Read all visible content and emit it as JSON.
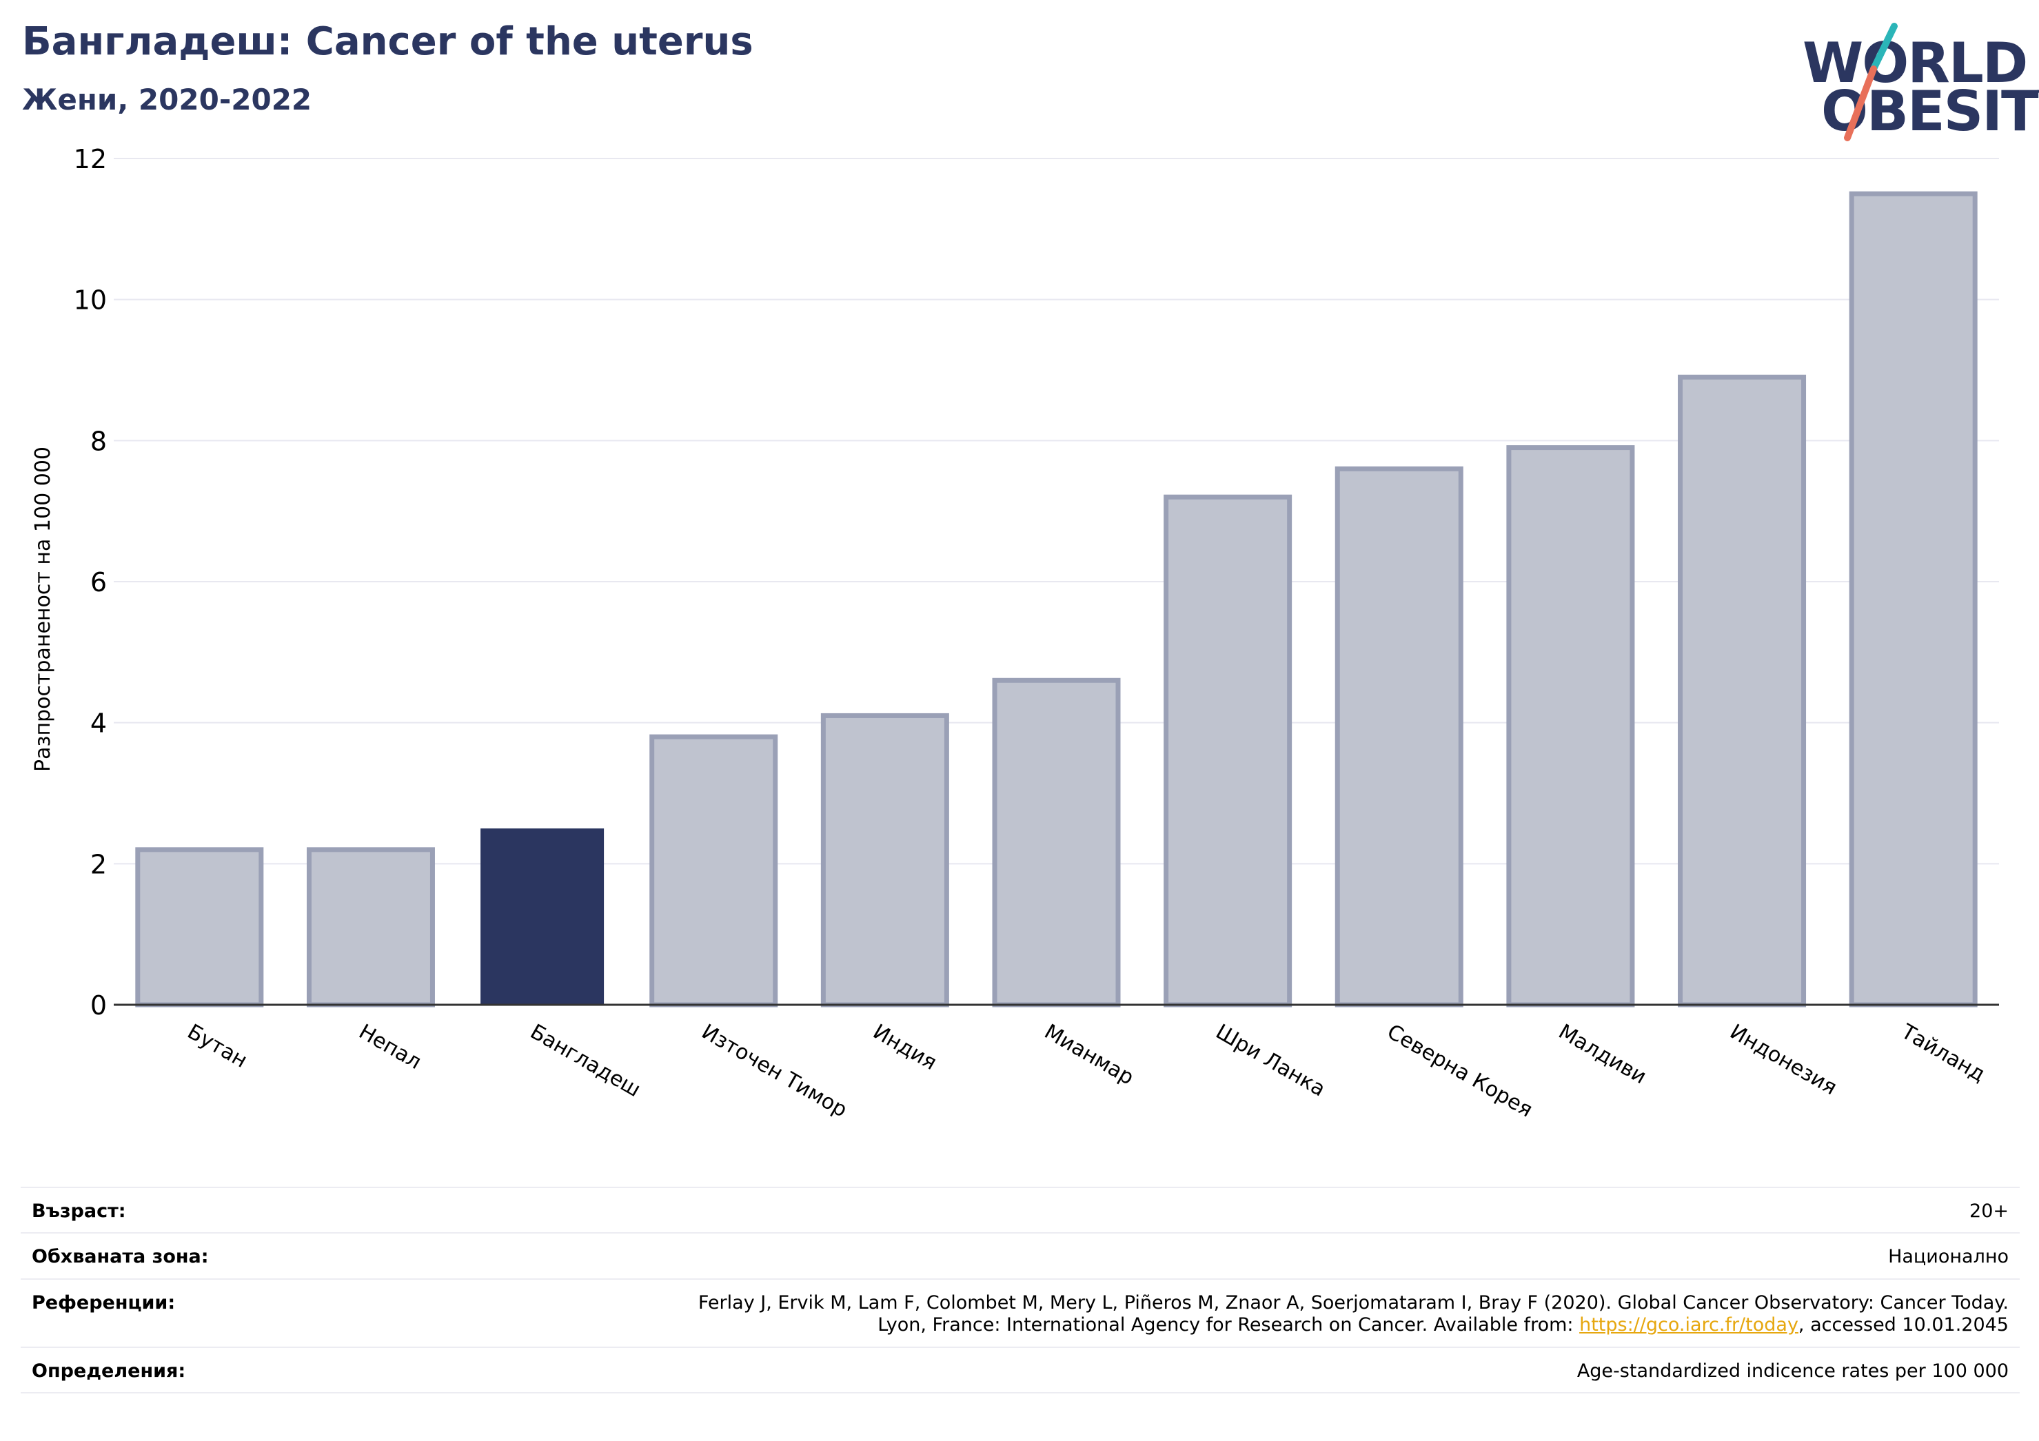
{
  "header": {
    "title": "Бангладеш: Cancer of the uterus",
    "subtitle": "Жени, 2020-2022"
  },
  "logo": {
    "line1": "WORLD",
    "line2": "OBESITY",
    "colors": {
      "navy": "#2b3660",
      "teal": "#2bb5b8",
      "coral": "#e8705a"
    }
  },
  "chart_data": {
    "type": "bar",
    "title": "Бангладеш: Cancer of the uterus",
    "subtitle": "Жени, 2020-2022",
    "ylabel": "Разпространеност  на 100 000",
    "xlabel": "",
    "ylim": [
      0,
      12
    ],
    "yticks": [
      0,
      2,
      4,
      6,
      8,
      10,
      12
    ],
    "grid": true,
    "legend": "none",
    "categories": [
      "Бутан",
      "Непал",
      "Бангладеш",
      "Източен Тимор",
      "Индия",
      "Мианмар",
      "Шри Ланка",
      "Северна Корея",
      "Малдиви",
      "Индонезия",
      "Тайланд"
    ],
    "values": [
      2.2,
      2.2,
      2.5,
      3.8,
      4.1,
      4.6,
      7.2,
      7.6,
      7.9,
      8.9,
      11.5
    ],
    "highlight": "Бангладеш",
    "colors": {
      "bar": "#bfc3cf",
      "bar_edge": "#9aa0b6",
      "highlight": "#2b3660",
      "grid": "#e8e8f0",
      "axis": "#333333"
    }
  },
  "info": [
    {
      "label": "Възраст:",
      "value": "20+"
    },
    {
      "label": "Обхваната зона:",
      "value": "Национално"
    },
    {
      "label": "Референции:",
      "value_line1": "Ferlay J, Ervik M, Lam F, Colombet M, Mery L, Piñeros M, Znaor A, Soerjomataram I, Bray F (2020). Global Cancer Observatory: Cancer Today.",
      "value_line2_pre": "Lyon, France: International Agency for Research on Cancer. Available from: ",
      "link": "https://gco.iarc.fr/today",
      "value_line2_post": ", accessed 10.01.2045"
    },
    {
      "label": "Определения:",
      "value": "Age-standardized indicence rates per 100 000"
    }
  ]
}
